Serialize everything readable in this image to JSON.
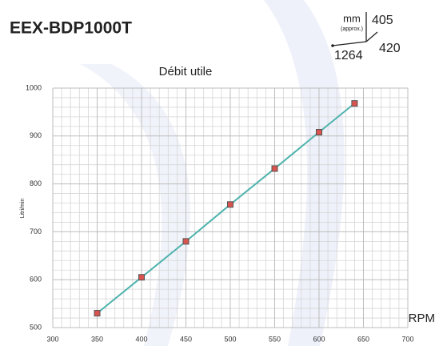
{
  "header": {
    "title": "EEX-BDP1000T"
  },
  "dimensions": {
    "unit": "mm",
    "note": "(approx.)",
    "height": "405",
    "depth": "420",
    "width": "1264"
  },
  "chart_data": {
    "type": "line",
    "title": "Débit utile",
    "x_label": "RPM",
    "y_label": "Litri/min",
    "x": [
      350,
      400,
      450,
      500,
      550,
      600,
      640
    ],
    "series": [
      {
        "name": "Débit utile",
        "color": "#4fb3ad",
        "marker_color": "#d9534f",
        "values": [
          530,
          605,
          680,
          757,
          832,
          908,
          968
        ]
      }
    ],
    "xlim": [
      300,
      700
    ],
    "xticks": [
      300,
      350,
      400,
      450,
      500,
      550,
      600,
      650,
      700
    ],
    "ylim": [
      500,
      1000
    ],
    "yticks": [
      500,
      600,
      700,
      800,
      900,
      1000
    ],
    "grid": true,
    "minor_divisions": 5
  }
}
